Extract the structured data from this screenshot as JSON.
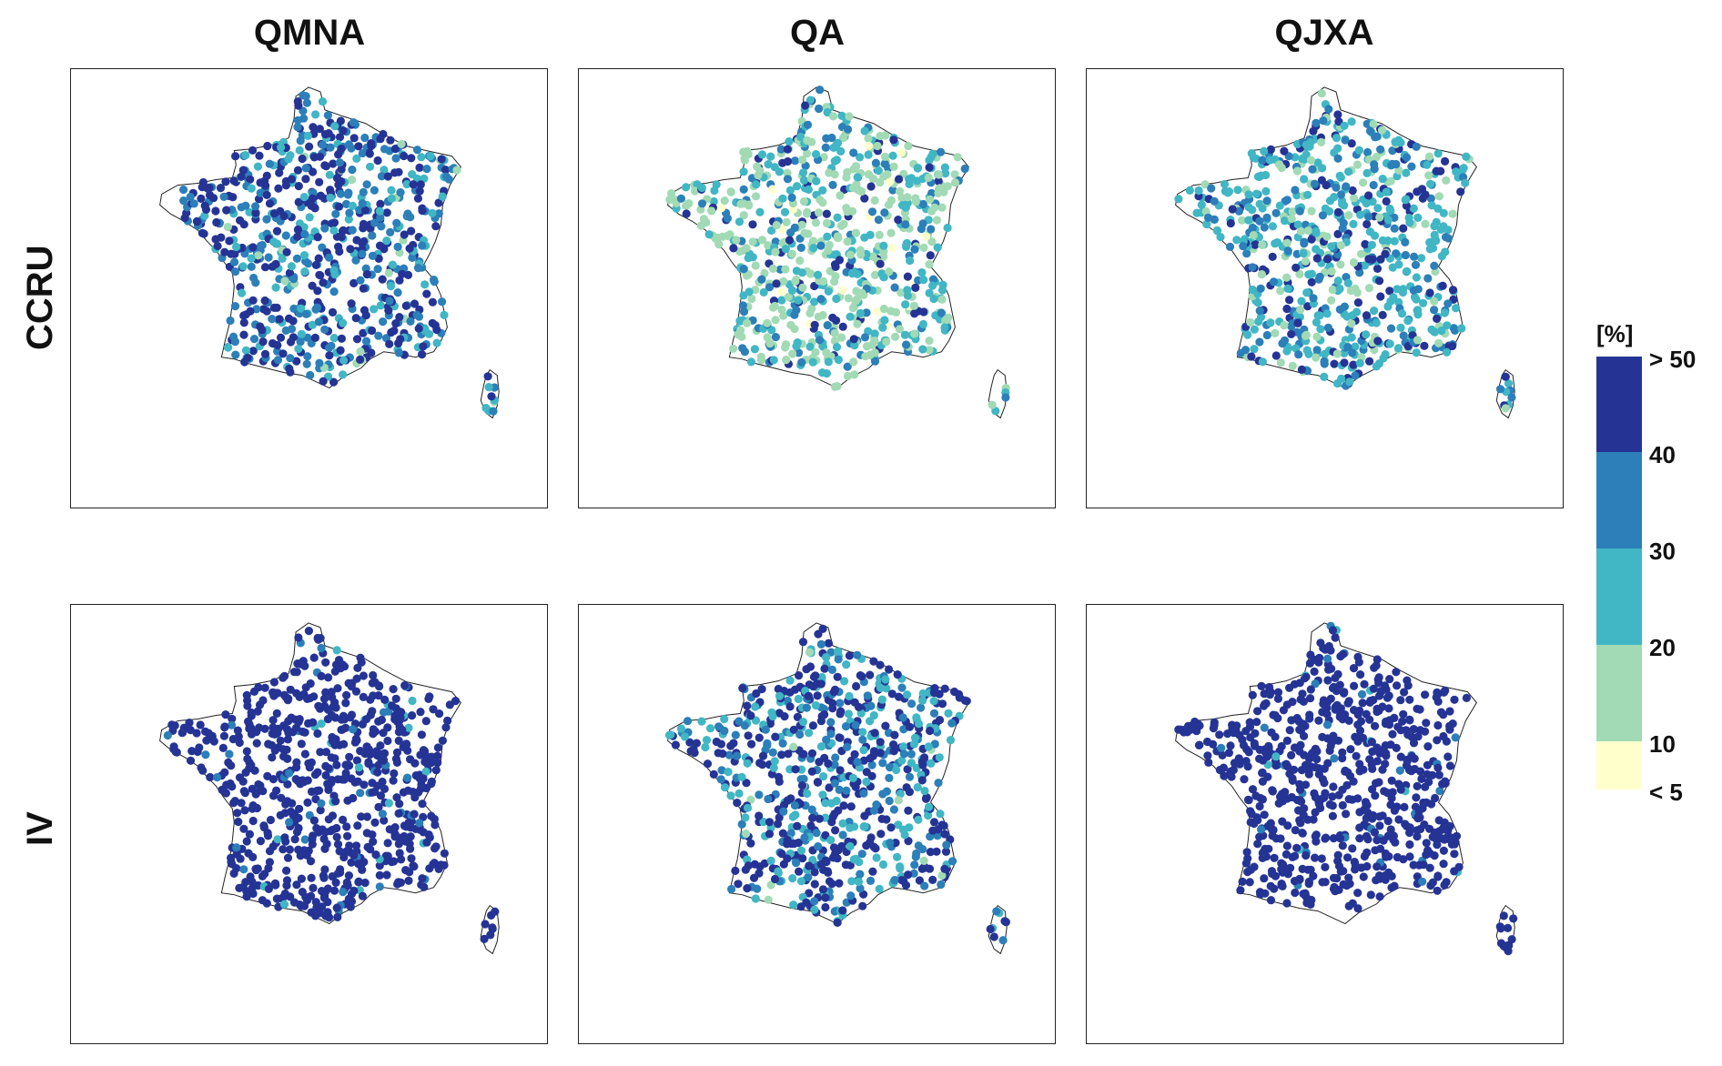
{
  "columns": [
    "QMNA",
    "QA",
    "QJXA"
  ],
  "rows": [
    "CCRU",
    "IV"
  ],
  "legend": {
    "unit": "[%]",
    "classes": [
      {
        "label": "> 50",
        "color": "#253494"
      },
      {
        "label": "40",
        "color": "#2c7fb8"
      },
      {
        "label": "30",
        "color": "#41b6c4"
      },
      {
        "label": "20",
        "color": "#a1dab4"
      },
      {
        "label": "10",
        "color": "#ffffcc"
      },
      {
        "label": "< 5"
      }
    ]
  },
  "panels": [
    {
      "column": "QMNA",
      "row": "CCRU",
      "class_mix": [
        0.45,
        0.32,
        0.2,
        0.03,
        0.0
      ]
    },
    {
      "column": "QA",
      "row": "CCRU",
      "class_mix": [
        0.08,
        0.17,
        0.28,
        0.44,
        0.03
      ]
    },
    {
      "column": "QJXA",
      "row": "CCRU",
      "class_mix": [
        0.18,
        0.27,
        0.4,
        0.15,
        0.0
      ]
    },
    {
      "column": "QMNA",
      "row": "IV",
      "class_mix": [
        0.93,
        0.05,
        0.02,
        0.0,
        0.0
      ]
    },
    {
      "column": "QA",
      "row": "IV",
      "class_mix": [
        0.5,
        0.25,
        0.23,
        0.02,
        0.0
      ]
    },
    {
      "column": "QJXA",
      "row": "IV",
      "class_mix": [
        0.95,
        0.04,
        0.01,
        0.0,
        0.0
      ]
    }
  ]
}
